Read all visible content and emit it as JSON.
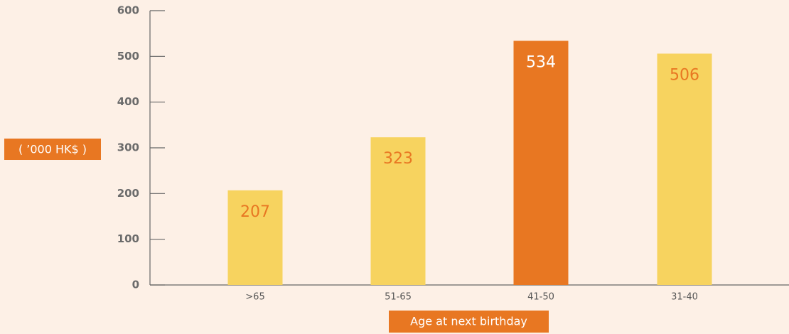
{
  "chart_data": {
    "type": "bar",
    "y_axis_label": "( ’000 HK$ )",
    "x_axis_label": "Age at next birthday",
    "categories": [
      ">65",
      "51-65",
      "41-50",
      "31-40"
    ],
    "values": [
      207,
      323,
      534,
      506
    ],
    "colors": [
      "#f7d35f",
      "#f7d35f",
      "#e87722",
      "#f7d35f"
    ],
    "label_colors": [
      "#e87722",
      "#e87722",
      "#ffffff",
      "#e87722"
    ],
    "ylim": [
      0,
      600
    ],
    "yticks": [
      0,
      100,
      200,
      300,
      400,
      500,
      600
    ]
  }
}
